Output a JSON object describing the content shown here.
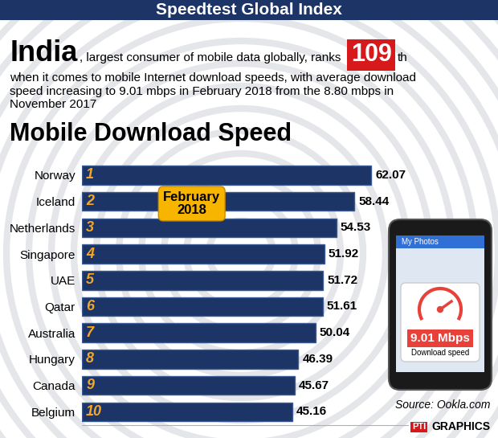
{
  "header": {
    "title": "Speedtest Global Index",
    "country": "India",
    "text_1": ", largest consumer of mobile data globally, ranks",
    "rank": 109,
    "rank_suffix": "th",
    "text_2": "when it comes to mobile Internet download speeds, with average download speed increasing to 9.01 mbps in February 2018 from the 8.80 mbps in November 2017"
  },
  "chart_data": {
    "type": "bar",
    "orientation": "horizontal",
    "title": "Mobile Download Speed",
    "badge": [
      "February",
      "2018"
    ],
    "categories": [
      "Norway",
      "Iceland",
      "Netherlands",
      "Singapore",
      "UAE",
      "Qatar",
      "Australia",
      "Hungary",
      "Canada",
      "Belgium"
    ],
    "ranks": [
      1,
      2,
      3,
      4,
      5,
      6,
      7,
      8,
      9,
      10
    ],
    "values": [
      62.07,
      58.44,
      54.53,
      51.92,
      51.72,
      51.61,
      50.04,
      46.39,
      45.67,
      45.16
    ],
    "color": "#1c3566",
    "xlim": [
      0,
      70
    ],
    "data_labels": true,
    "tick_labels": "y"
  },
  "phone": {
    "screen_title": "My Photos",
    "speed": "9.01 Mbps",
    "speed_caption": "Download speed"
  },
  "source": "Source: Ookla.com",
  "credit": [
    "PTI",
    "GRAPHICS"
  ]
}
